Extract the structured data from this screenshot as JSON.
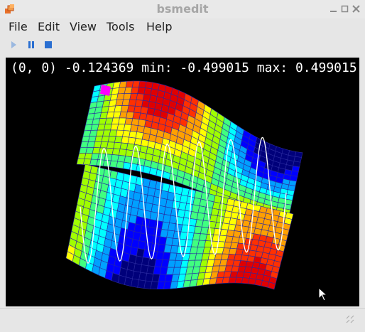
{
  "window": {
    "title": "bsmedit"
  },
  "menu": {
    "items": [
      "File",
      "Edit",
      "View",
      "Tools",
      "Help"
    ]
  },
  "toolbar": {
    "icons": [
      "play-icon",
      "pause-icon",
      "stop-icon"
    ]
  },
  "plot": {
    "hud_text": "(0, 0) -0.124369 min: -0.499015 max: 0.499015",
    "colormap": [
      "#00007a",
      "#0000ff",
      "#00a0ff",
      "#00ffff",
      "#40ff80",
      "#a0ff00",
      "#ffff00",
      "#ffa000",
      "#ff3000",
      "#e00000"
    ]
  },
  "colors": {
    "accent_icon": "#2a6fd1",
    "background": "#000000",
    "window_bg": "#e6e6e6"
  }
}
